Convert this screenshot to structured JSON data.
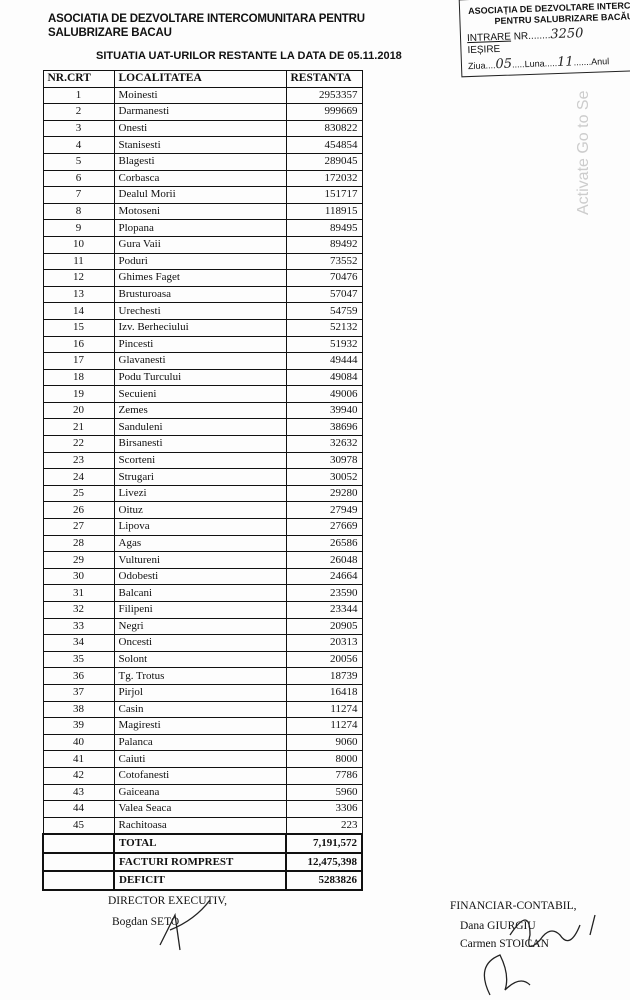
{
  "header": {
    "title": "ASOCIATIA DE DEZVOLTARE INTERCOMUNITARA PENTRU SALUBRIZARE BACAU",
    "subtitle": "SITUATIA UAT-URILOR RESTANTE LA DATA DE 05.11.2018"
  },
  "stamp": {
    "line1": "ASOCIAȚIA DE DEZVOLTARE INTERCO",
    "line2": "PENTRU SALUBRIZARE BACĂU",
    "intrare": "INTRARE",
    "nr_label": "NR.",
    "nr_value": "3250",
    "iesire": "IEȘIRE",
    "ziua_label": "Ziua",
    "ziua_value": "05",
    "luna_label": "Luna",
    "luna_value": "11",
    "anul_label": "Anul"
  },
  "table": {
    "headers": [
      "NR.CRT",
      "LOCALITATEA",
      "RESTANTA"
    ],
    "rows": [
      [
        "1",
        "Moinesti",
        "2953357"
      ],
      [
        "2",
        "Darmanesti",
        "999669"
      ],
      [
        "3",
        "Onesti",
        "830822"
      ],
      [
        "4",
        "Stanisesti",
        "454854"
      ],
      [
        "5",
        "Blagesti",
        "289045"
      ],
      [
        "6",
        "Corbasca",
        "172032"
      ],
      [
        "7",
        "Dealul Morii",
        "151717"
      ],
      [
        "8",
        "Motoseni",
        "118915"
      ],
      [
        "9",
        "Plopana",
        "89495"
      ],
      [
        "10",
        "Gura Vaii",
        "89492"
      ],
      [
        "11",
        "Poduri",
        "73552"
      ],
      [
        "12",
        "Ghimes Faget",
        "70476"
      ],
      [
        "13",
        "Brusturoasa",
        "57047"
      ],
      [
        "14",
        "Urechesti",
        "54759"
      ],
      [
        "15",
        "Izv. Berheciului",
        "52132"
      ],
      [
        "16",
        "Pincesti",
        "51932"
      ],
      [
        "17",
        "Glavanesti",
        "49444"
      ],
      [
        "18",
        "Podu Turcului",
        "49084"
      ],
      [
        "19",
        "Secuieni",
        "49006"
      ],
      [
        "20",
        "Zemes",
        "39940"
      ],
      [
        "21",
        "Sanduleni",
        "38696"
      ],
      [
        "22",
        "Birsanesti",
        "32632"
      ],
      [
        "23",
        "Scorteni",
        "30978"
      ],
      [
        "24",
        "Strugari",
        "30052"
      ],
      [
        "25",
        "Livezi",
        "29280"
      ],
      [
        "26",
        "Oituz",
        "27949"
      ],
      [
        "27",
        "Lipova",
        "27669"
      ],
      [
        "28",
        "Agas",
        "26586"
      ],
      [
        "29",
        "Vultureni",
        "26048"
      ],
      [
        "30",
        "Odobesti",
        "24664"
      ],
      [
        "31",
        "Balcani",
        "23590"
      ],
      [
        "32",
        "Filipeni",
        "23344"
      ],
      [
        "33",
        "Negri",
        "20905"
      ],
      [
        "34",
        "Oncesti",
        "20313"
      ],
      [
        "35",
        "Solont",
        "20056"
      ],
      [
        "36",
        "Tg. Trotus",
        "18739"
      ],
      [
        "37",
        "Pirjol",
        "16418"
      ],
      [
        "38",
        "Casin",
        "11274"
      ],
      [
        "39",
        "Magiresti",
        "11274"
      ],
      [
        "40",
        "Palanca",
        "9060"
      ],
      [
        "41",
        "Caiuti",
        "8000"
      ],
      [
        "42",
        "Cotofanesti",
        "7786"
      ],
      [
        "43",
        "Gaiceana",
        "5960"
      ],
      [
        "44",
        "Valea Seaca",
        "3306"
      ],
      [
        "45",
        "Rachitoasa",
        "223"
      ]
    ],
    "summary": [
      [
        "TOTAL",
        "7,191,572"
      ],
      [
        "FACTURI ROMPREST",
        "12,475,398"
      ],
      [
        "DEFICIT",
        "5283826"
      ]
    ]
  },
  "signatures": {
    "left_title": "DIRECTOR EXECUTIV,",
    "left_name": "Bogdan SETO",
    "right_title": "FINANCIAR-CONTABIL,",
    "right_name1": "Dana GIURGIU",
    "right_name2": "Carmen STOICAN"
  },
  "watermark": "Activate Go to Se"
}
